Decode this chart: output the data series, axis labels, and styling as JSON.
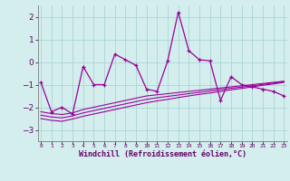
{
  "x": [
    0,
    1,
    2,
    3,
    4,
    5,
    6,
    7,
    8,
    9,
    10,
    11,
    12,
    13,
    14,
    15,
    16,
    17,
    18,
    19,
    20,
    21,
    22,
    23
  ],
  "y_main": [
    -0.9,
    -2.2,
    -2.0,
    -2.3,
    -0.2,
    -1.0,
    -1.0,
    0.35,
    0.1,
    -0.15,
    -1.2,
    -1.3,
    0.05,
    2.2,
    0.5,
    0.1,
    0.05,
    -1.7,
    -0.65,
    -1.0,
    -1.1,
    -1.2,
    -1.3,
    -1.5
  ],
  "y_line1": [
    -2.2,
    -2.28,
    -2.32,
    -2.25,
    -2.1,
    -2.0,
    -1.9,
    -1.8,
    -1.7,
    -1.6,
    -1.5,
    -1.45,
    -1.4,
    -1.35,
    -1.3,
    -1.25,
    -1.2,
    -1.15,
    -1.1,
    -1.05,
    -1.0,
    -0.95,
    -0.9,
    -0.85
  ],
  "y_line2": [
    -2.5,
    -2.58,
    -2.62,
    -2.52,
    -2.4,
    -2.3,
    -2.2,
    -2.1,
    -2.0,
    -1.9,
    -1.8,
    -1.72,
    -1.65,
    -1.57,
    -1.5,
    -1.43,
    -1.37,
    -1.3,
    -1.23,
    -1.17,
    -1.1,
    -1.03,
    -0.97,
    -0.9
  ],
  "y_line3": [
    -2.35,
    -2.43,
    -2.47,
    -2.38,
    -2.25,
    -2.15,
    -2.05,
    -1.95,
    -1.85,
    -1.75,
    -1.65,
    -1.58,
    -1.52,
    -1.46,
    -1.4,
    -1.34,
    -1.28,
    -1.22,
    -1.16,
    -1.11,
    -1.05,
    -0.99,
    -0.93,
    -0.87
  ],
  "color": "#990099",
  "bg_color": "#d4eeee",
  "grid_color": "#aad4d4",
  "ylim": [
    -3.5,
    2.5
  ],
  "yticks": [
    -3,
    -2,
    -1,
    0,
    1,
    2
  ],
  "xlabel": "Windchill (Refroidissement éolien,°C)",
  "xtick_labels": [
    "0",
    "1",
    "2",
    "3",
    "4",
    "5",
    "6",
    "7",
    "8",
    "9",
    "10",
    "11",
    "12",
    "13",
    "14",
    "15",
    "16",
    "17",
    "18",
    "19",
    "20",
    "21",
    "22",
    "23"
  ]
}
